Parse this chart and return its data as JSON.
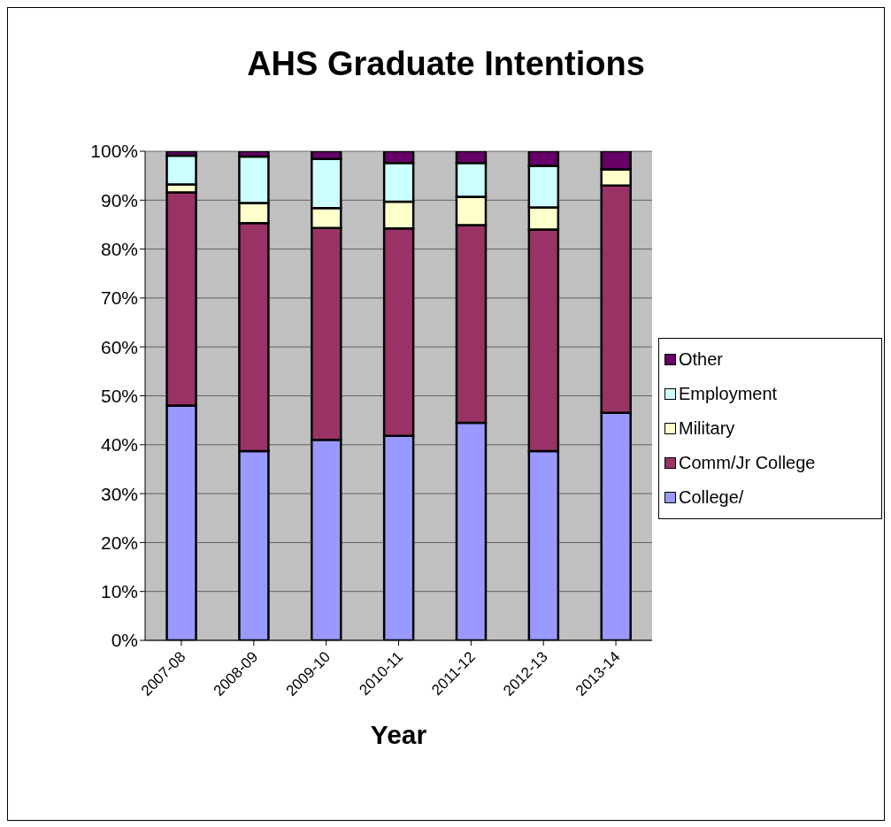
{
  "chart_data": {
    "type": "bar",
    "title": "AHS Graduate Intentions",
    "xlabel": "Year",
    "categories": [
      "2007-08",
      "2008-09",
      "2009-10",
      "2010-11",
      "2011-12",
      "2012-13",
      "2013-14"
    ],
    "stacked": true,
    "series": [
      {
        "name": "College/",
        "color": "#9999ff",
        "values": [
          48.0,
          38.7,
          41.0,
          41.8,
          44.5,
          38.7,
          46.5
        ]
      },
      {
        "name": "Comm/Jr College",
        "color": "#993366",
        "values": [
          43.6,
          46.6,
          43.3,
          42.4,
          40.4,
          45.3,
          46.5
        ]
      },
      {
        "name": "Military",
        "color": "#ffffcc",
        "values": [
          1.6,
          4.1,
          4.1,
          5.5,
          5.8,
          4.5,
          3.3
        ]
      },
      {
        "name": "Employment",
        "color": "#ccffff",
        "values": [
          5.9,
          9.5,
          10.0,
          7.9,
          6.9,
          8.5,
          0
        ]
      },
      {
        "name": "Other",
        "color": "#660066",
        "values": [
          0.9,
          1.1,
          1.6,
          2.4,
          2.4,
          3.0,
          3.7
        ]
      }
    ],
    "ylim": [
      0,
      100
    ],
    "yticks": [
      {
        "value": 0,
        "label": "0%"
      },
      {
        "value": 10,
        "label": "10%"
      },
      {
        "value": 20,
        "label": "20%"
      },
      {
        "value": 30,
        "label": "30%"
      },
      {
        "value": 40,
        "label": "40%"
      },
      {
        "value": 50,
        "label": "50%"
      },
      {
        "value": 60,
        "label": "60%"
      },
      {
        "value": 70,
        "label": "70%"
      },
      {
        "value": 80,
        "label": "80%"
      },
      {
        "value": 90,
        "label": "90%"
      },
      {
        "value": 100,
        "label": "100%"
      }
    ],
    "grid": "y",
    "legend": "right"
  }
}
